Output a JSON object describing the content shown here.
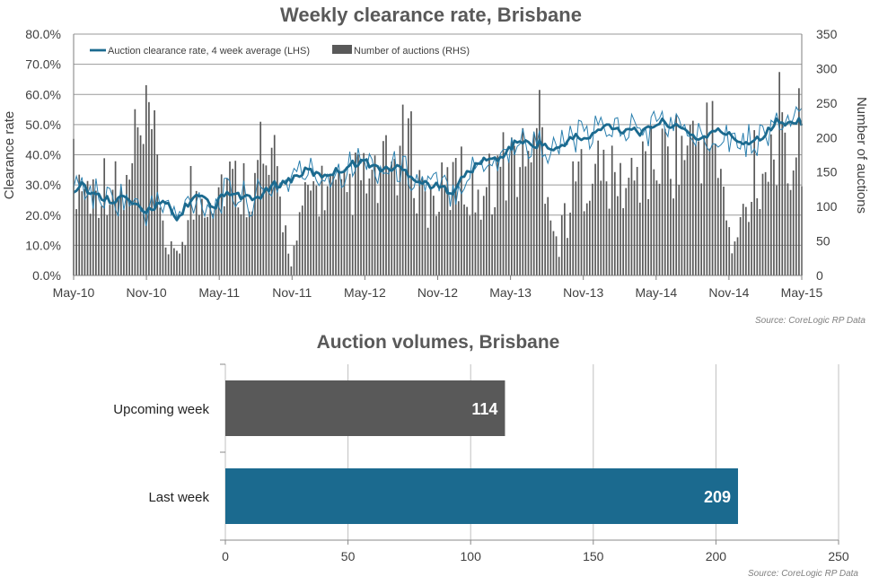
{
  "chart_data": [
    {
      "type": "bar+line",
      "title": "Weekly clearance rate, Brisbane",
      "ylabel_left": "Clearance rate",
      "ylabel_right": "Number of auctions",
      "ylim_left": [
        0,
        80
      ],
      "ylim_right": [
        0,
        350
      ],
      "yticks_left": [
        "0.0%",
        "10.0%",
        "20.0%",
        "30.0%",
        "40.0%",
        "50.0%",
        "60.0%",
        "70.0%",
        "80.0%"
      ],
      "yticks_right": [
        "0",
        "50",
        "100",
        "150",
        "200",
        "250",
        "300",
        "350"
      ],
      "xticks": [
        "May-10",
        "Nov-10",
        "May-11",
        "Nov-11",
        "May-12",
        "Nov-12",
        "May-13",
        "Nov-13",
        "May-14",
        "Nov-14",
        "May-15"
      ],
      "legend": [
        "Auction clearance rate, 4 week average (LHS)",
        "Number of auctions (RHS)"
      ],
      "legend_position": "top-left",
      "grid": true,
      "source": "Source: CoreLogic  RP Data",
      "colors": {
        "bars": "#595959",
        "line_avg": "#1b6a8f",
        "line_weekly": "#2a7fae"
      },
      "series": [
        {
          "name": "Auction clearance rate, 4 week average (LHS)",
          "anchors_x_weeks": [
            0,
            3,
            6,
            10,
            14,
            18,
            22,
            25,
            27,
            29,
            31,
            34,
            37,
            40,
            44,
            47,
            50,
            53,
            56,
            60,
            64,
            68,
            72,
            76,
            80,
            84,
            88,
            92,
            96,
            100,
            104,
            108,
            112,
            116,
            120,
            124,
            128,
            132,
            136,
            140,
            144,
            148,
            152,
            156,
            160,
            164,
            168,
            172,
            176,
            180,
            184,
            188,
            192,
            196,
            200,
            204,
            208,
            212,
            216,
            220,
            224,
            228,
            232,
            236,
            240,
            244,
            248,
            252,
            256,
            260,
            261
          ],
          "anchors_y_percent": [
            28,
            31,
            27,
            26,
            25,
            26,
            23,
            21,
            22,
            23,
            24,
            23,
            18,
            23,
            26,
            25,
            22,
            26,
            27,
            26,
            25,
            27,
            30,
            31,
            33,
            35,
            33,
            34,
            35,
            37,
            38,
            36,
            35,
            36,
            34,
            31,
            30,
            29,
            28,
            33,
            36,
            39,
            38,
            42,
            45,
            43,
            44,
            41,
            44,
            46,
            45,
            48,
            50,
            48,
            49,
            47,
            50,
            51,
            49,
            48,
            45,
            47,
            48,
            46,
            44,
            45,
            47,
            51,
            50,
            52,
            50
          ]
        },
        {
          "name": "Number of auctions (RHS)",
          "anchors_x_weeks": [
            0,
            6,
            12,
            18,
            24,
            26,
            28,
            30,
            34,
            38,
            42,
            48,
            54,
            60,
            66,
            72,
            78,
            84,
            90,
            96,
            102,
            108,
            114,
            120,
            126,
            132,
            138,
            144,
            150,
            156,
            162,
            168,
            174,
            180,
            186,
            192,
            198,
            204,
            210,
            216,
            222,
            226,
            230,
            236,
            240,
            244,
            248,
            252,
            256,
            260,
            261
          ],
          "anchors_y_auctions": [
            150,
            120,
            140,
            110,
            180,
            200,
            200,
            150,
            20,
            40,
            90,
            120,
            140,
            130,
            140,
            150,
            20,
            120,
            130,
            110,
            140,
            130,
            160,
            190,
            100,
            120,
            140,
            110,
            140,
            170,
            160,
            190,
            30,
            140,
            160,
            140,
            130,
            150,
            170,
            180,
            190,
            200,
            200,
            30,
            90,
            130,
            160,
            200,
            150,
            200,
            140
          ]
        }
      ]
    },
    {
      "type": "bar",
      "orientation": "horizontal",
      "title": "Auction volumes, Brisbane",
      "categories": [
        "Upcoming week",
        "Last week"
      ],
      "values": [
        114,
        209
      ],
      "value_labels": [
        "114",
        "209"
      ],
      "xlim": [
        0,
        250
      ],
      "xticks": [
        "0",
        "50",
        "100",
        "150",
        "200",
        "250"
      ],
      "grid": true,
      "source": "Source: CoreLogic  RP Data",
      "colors": [
        "#595959",
        "#1b6a8f"
      ]
    }
  ]
}
